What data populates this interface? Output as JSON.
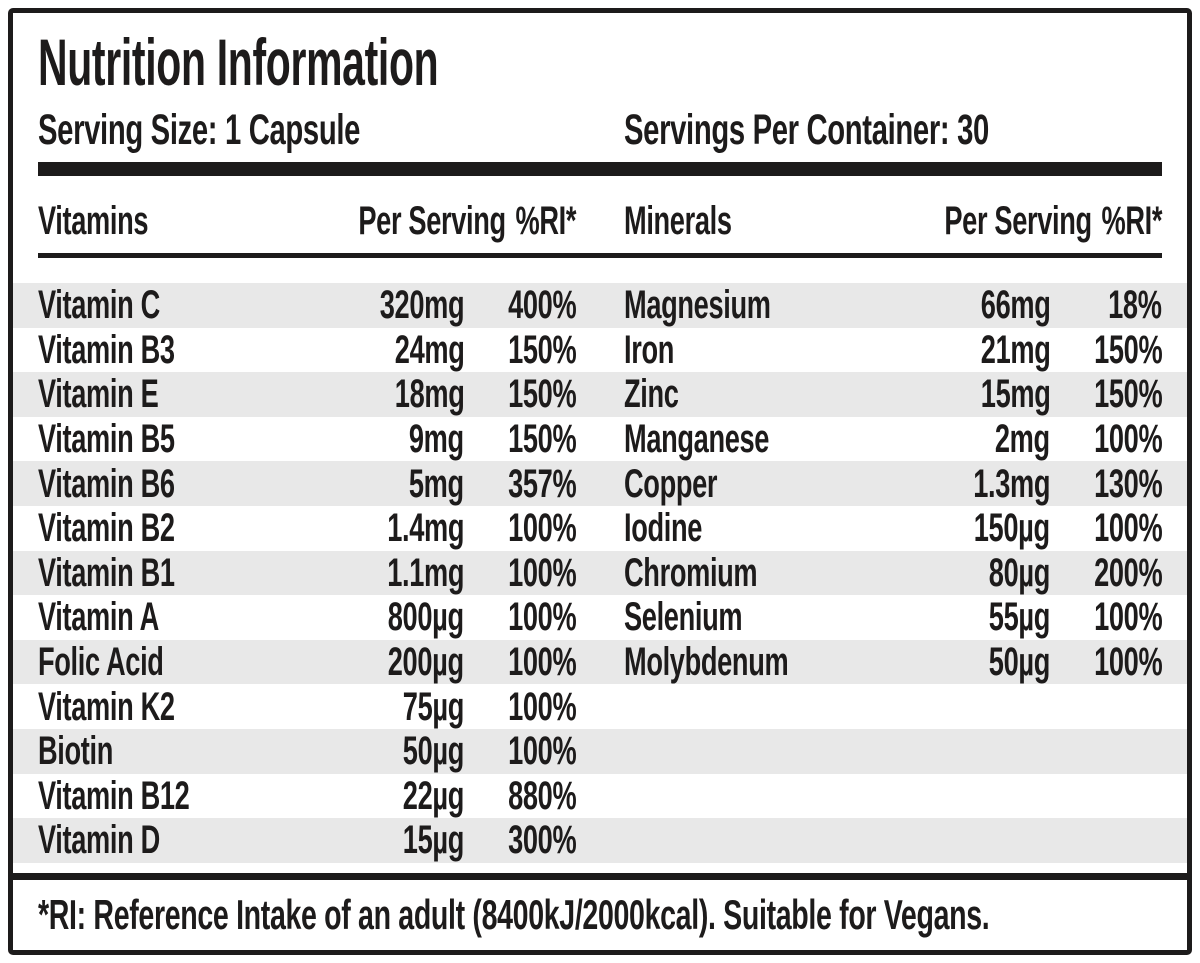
{
  "label": {
    "title": "Nutrition Information",
    "serving_size": "Serving Size: 1 Capsule",
    "servings_per_container": "Servings Per Container: 30",
    "footnote": "*RI: Reference Intake of an adult (8400kJ/2000kcal). Suitable for Vegans."
  },
  "colors": {
    "ink": "#1d1b1b",
    "stripe": "#e8e8e8"
  },
  "vitamins": {
    "header": {
      "name": "Vitamins",
      "per_serving": "Per Serving",
      "ri": "%RI*"
    },
    "rows": [
      {
        "name": "Vitamin C",
        "amount": "320mg",
        "ri": "400%"
      },
      {
        "name": "Vitamin B3",
        "amount": "24mg",
        "ri": "150%"
      },
      {
        "name": "Vitamin E",
        "amount": "18mg",
        "ri": "150%"
      },
      {
        "name": "Vitamin B5",
        "amount": "9mg",
        "ri": "150%"
      },
      {
        "name": "Vitamin B6",
        "amount": "5mg",
        "ri": "357%"
      },
      {
        "name": "Vitamin B2",
        "amount": "1.4mg",
        "ri": "100%"
      },
      {
        "name": "Vitamin B1",
        "amount": "1.1mg",
        "ri": "100%"
      },
      {
        "name": "Vitamin A",
        "amount": "800µg",
        "ri": "100%"
      },
      {
        "name": "Folic Acid",
        "amount": "200µg",
        "ri": "100%"
      },
      {
        "name": "Vitamin K2",
        "amount": "75µg",
        "ri": "100%"
      },
      {
        "name": "Biotin",
        "amount": "50µg",
        "ri": "100%"
      },
      {
        "name": "Vitamin B12",
        "amount": "22µg",
        "ri": "880%"
      },
      {
        "name": "Vitamin D",
        "amount": "15µg",
        "ri": "300%"
      }
    ]
  },
  "minerals": {
    "header": {
      "name": "Minerals",
      "per_serving": "Per Serving",
      "ri": "%RI*"
    },
    "rows": [
      {
        "name": "Magnesium",
        "amount": "66mg",
        "ri": "18%"
      },
      {
        "name": "Iron",
        "amount": "21mg",
        "ri": "150%"
      },
      {
        "name": "Zinc",
        "amount": "15mg",
        "ri": "150%"
      },
      {
        "name": "Manganese",
        "amount": "2mg",
        "ri": "100%"
      },
      {
        "name": "Copper",
        "amount": "1.3mg",
        "ri": "130%"
      },
      {
        "name": "Iodine",
        "amount": "150µg",
        "ri": "100%"
      },
      {
        "name": "Chromium",
        "amount": "80µg",
        "ri": "200%"
      },
      {
        "name": "Selenium",
        "amount": "55µg",
        "ri": "100%"
      },
      {
        "name": "Molybdenum",
        "amount": "50µg",
        "ri": "100%"
      }
    ]
  }
}
